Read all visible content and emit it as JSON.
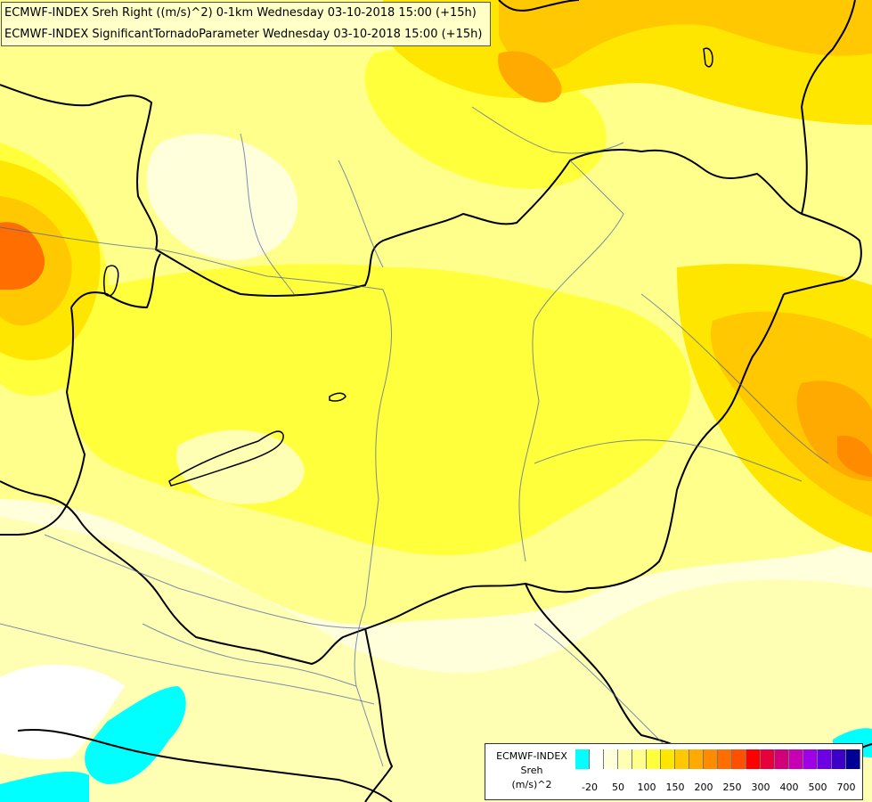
{
  "title": {
    "line1": "ECMWF-INDEX Sreh Right ((m/s)^2) 0-1km Wednesday 03-10-2018 15:00 (+15h)",
    "line2": "ECMWF-INDEX SignificantTornadoParameter Wednesday 03-10-2018 15:00 (+15h)"
  },
  "legend": {
    "title_line1": "ECMWF-INDEX",
    "title_line2": "Sreh",
    "title_line3": "(m/s)^2",
    "colors": [
      "#00ffff",
      "#ffffff",
      "#ffffdc",
      "#ffffb4",
      "#ffff8c",
      "#ffff3c",
      "#ffe600",
      "#ffc800",
      "#ffaa00",
      "#ff8c00",
      "#ff6e00",
      "#ff5000",
      "#ff0000",
      "#e6003c",
      "#d20078",
      "#c800b4",
      "#a000e6",
      "#6e00e6",
      "#3c00c8",
      "#000096"
    ],
    "ticks": [
      "-20",
      "50",
      "100",
      "150",
      "200",
      "250",
      "300",
      "400",
      "500",
      "700"
    ]
  },
  "colors": {
    "neg": "#00ffff",
    "pale": "#ffffdc",
    "light": "#ffffb4",
    "yellow": "#ffff8c",
    "bright": "#ffff3c",
    "gold": "#ffe600",
    "amber": "#ffc800",
    "orange": "#ffaa00",
    "deep_orange": "#ff8c00",
    "red_orange": "#ff6e00",
    "border": "#000000",
    "river": "#4060a0"
  }
}
